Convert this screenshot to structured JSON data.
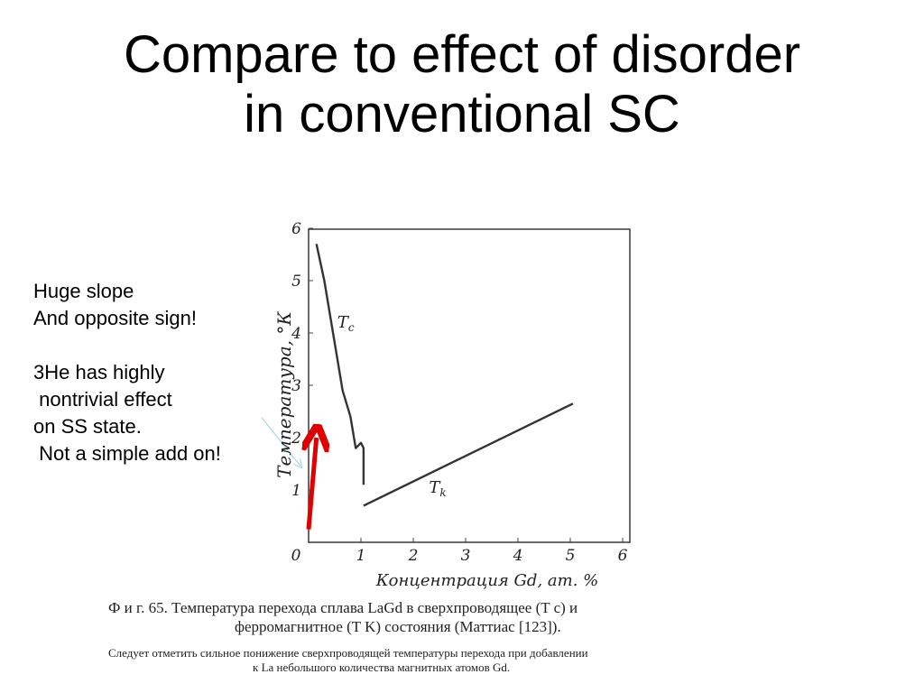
{
  "slide": {
    "title_lines": [
      "Compare to effect of disorder",
      "in conventional SC"
    ],
    "notes": {
      "lines_a": [
        "Huge slope",
        "And opposite sign!"
      ],
      "lines_b": [
        "3He has highly",
        " nontrivial effect",
        "on SS state.",
        " Not a simple add on!"
      ]
    },
    "caption": {
      "line1": "Ф и г.  65.  Температура перехода  сплава  LaGd  в  сверхпроводящее  (T c)  и",
      "line2": "ферромагнитное  (T K)  состояния  (Маттиас  [123]).",
      "line3": "Следует отметить сильное понижение сверхпроводящей  температуры перехода  при добавлении",
      "line4": "к La небольшого количества магнитных атомов Gd."
    }
  },
  "chart_data": {
    "type": "line",
    "xlabel": "Концентрация Gd, ат. %",
    "ylabel": "Температура, °К",
    "xlim": [
      0,
      6
    ],
    "ylim": [
      0,
      6
    ],
    "x_ticks": [
      "0",
      "1",
      "2",
      "3",
      "4",
      "5",
      "6"
    ],
    "y_ticks": [
      "1",
      "2",
      "3",
      "4",
      "5",
      "6"
    ],
    "grid": false,
    "series": [
      {
        "name": "Tc",
        "label": "T c",
        "color": "#333333",
        "x": [
          0.15,
          0.3,
          0.65,
          0.8,
          0.9,
          1.0,
          1.05,
          1.05
        ],
        "y": [
          5.7,
          5.0,
          2.9,
          2.4,
          1.8,
          1.9,
          1.8,
          1.1
        ]
      },
      {
        "name": "Tk",
        "label": "T k",
        "color": "#333333",
        "x": [
          1.05,
          5.05
        ],
        "y": [
          0.7,
          2.65
        ]
      }
    ],
    "annotations": [
      {
        "type": "arrow",
        "color": "#e00000",
        "from": [
          0.0,
          0.25
        ],
        "to": [
          0.15,
          2.0
        ]
      },
      {
        "type": "arrow",
        "color": "#a8d8e0",
        "from": [
          -0.95,
          2.45
        ],
        "to": [
          -0.15,
          1.45
        ]
      }
    ]
  }
}
